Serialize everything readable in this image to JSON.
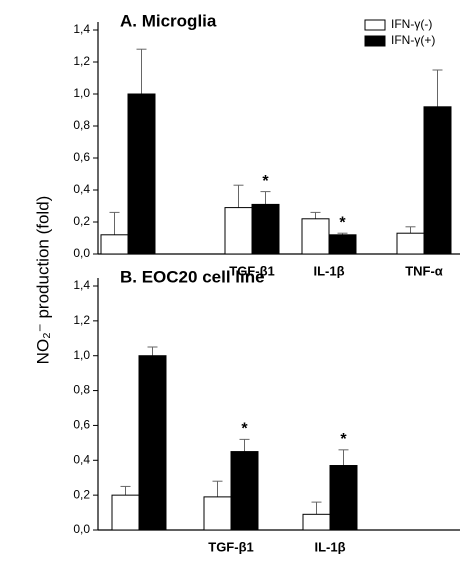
{
  "chart_data": [
    {
      "type": "bar",
      "title": "A. Microglia",
      "ylabel": "NO₂⁻ production (fold)",
      "categories": [
        null,
        "TGF-β1",
        "IL-1β",
        "TNF-α"
      ],
      "series": [
        {
          "name": "IFN-γ(-)",
          "color": "#ffffff",
          "values": [
            0.12,
            0.29,
            0.22,
            0.13
          ],
          "errors": [
            0.14,
            0.14,
            0.04,
            0.04
          ],
          "annotations": [
            null,
            null,
            null,
            null
          ]
        },
        {
          "name": "IFN-γ(+)",
          "color": "#000000",
          "values": [
            1.0,
            0.31,
            0.12,
            0.92
          ],
          "errors": [
            0.28,
            0.08,
            0.01,
            0.23
          ],
          "annotations": [
            null,
            "*",
            "*",
            null
          ]
        }
      ],
      "ylim": [
        0,
        1.4
      ],
      "yticks": [
        {
          "value": 0,
          "label": "0,0"
        },
        {
          "value": 0.2,
          "label": "0,2"
        },
        {
          "value": 0.4,
          "label": "0,4"
        },
        {
          "value": 0.6,
          "label": "0,6"
        },
        {
          "value": 0.8,
          "label": "0,8"
        },
        {
          "value": 1.0,
          "label": "1,0"
        },
        {
          "value": 1.2,
          "label": "1,2"
        },
        {
          "value": 1.4,
          "label": "1,4"
        }
      ],
      "legend": "top-right"
    },
    {
      "type": "bar",
      "title": "B. EOC20 cell line",
      "categories": [
        null,
        "TGF-β1",
        "IL-1β"
      ],
      "series": [
        {
          "color": "#ffffff",
          "values": [
            0.2,
            0.19,
            0.09
          ],
          "errors": [
            0.05,
            0.09,
            0.07
          ],
          "annotations": [
            null,
            null,
            null
          ]
        },
        {
          "color": "#000000",
          "values": [
            1.0,
            0.45,
            0.37
          ],
          "errors": [
            0.05,
            0.07,
            0.09
          ],
          "annotations": [
            null,
            "*",
            "*"
          ]
        }
      ],
      "ylim": [
        0,
        1.4
      ],
      "yticks": [
        {
          "value": 0,
          "label": "0,0"
        },
        {
          "value": 0.2,
          "label": "0,2"
        },
        {
          "value": 0.4,
          "label": "0,4"
        },
        {
          "value": 0.6,
          "label": "0,6"
        },
        {
          "value": 0.8,
          "label": "0,8"
        },
        {
          "value": 1.0,
          "label": "1,0"
        },
        {
          "value": 1.2,
          "label": "1,2"
        },
        {
          "value": 1.4,
          "label": "1,4"
        }
      ]
    }
  ]
}
